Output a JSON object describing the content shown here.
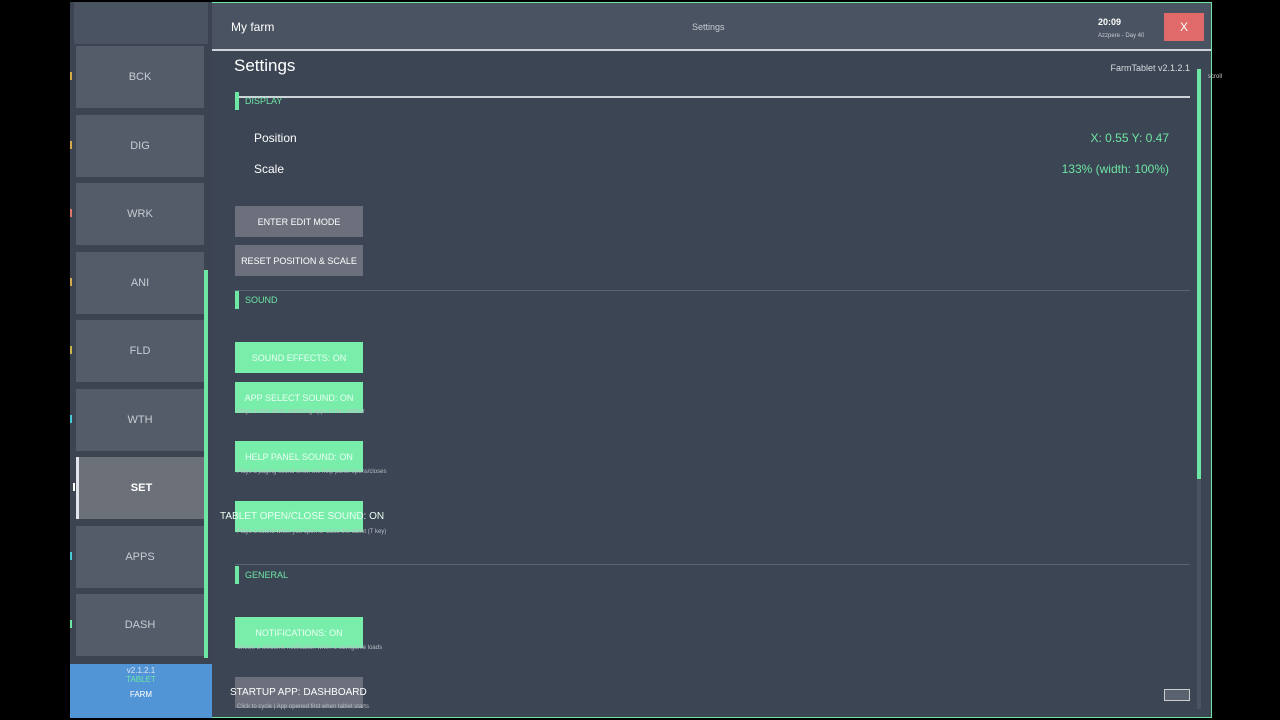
{
  "sidebar": {
    "items": [
      {
        "label": "BCK",
        "mark": "#d7a84a"
      },
      {
        "label": "DIG",
        "mark": "#d7a84a"
      },
      {
        "label": "WRK",
        "mark": "#e07a6a"
      },
      {
        "label": "ANI",
        "mark": "#d7a84a"
      },
      {
        "label": "FLD",
        "mark": "#c8b44a"
      },
      {
        "label": "WTH",
        "mark": "#4ac8d8"
      },
      {
        "label": "SET",
        "mark": "#ffffff"
      },
      {
        "label": "APPS",
        "mark": "#4ac8d8"
      },
      {
        "label": "DASH",
        "mark": "#6ee6a4"
      }
    ],
    "active": "SET",
    "footer": {
      "version": "v2.1.2.1",
      "line1": "TABLET",
      "line2": "FARM"
    }
  },
  "header": {
    "title": "My farm",
    "center": "Settings",
    "time": "20:09",
    "day": "Azzpere - Day 40",
    "close": "X"
  },
  "page": {
    "title": "Settings",
    "version": "FarmTablet v2.1.2.1",
    "scroll_label": "scroll",
    "scroll_fraction": 0.64
  },
  "display": {
    "heading": "DISPLAY",
    "position_label": "Position",
    "position_value": "X: 0.55  Y: 0.47",
    "scale_label": "Scale",
    "scale_value": "133%  (width: 100%)",
    "edit_btn": "ENTER EDIT MODE",
    "reset_btn": "RESET POSITION & SCALE"
  },
  "sound": {
    "heading": "SOUND",
    "effects": "SOUND EFFECTS: ON",
    "app_select": "APP SELECT SOUND: ON",
    "app_select_desc": "Plays a click when switching apps in the sidebar",
    "help": "HELP PANEL SOUND: ON",
    "help_desc": "Plays a paging sound when the help panel opens/closes",
    "tablet": "TABLET OPEN/CLOSE SOUND: ON",
    "tablet_desc": "Plays a sound when you open or close the tablet (T key)"
  },
  "general": {
    "heading": "GENERAL",
    "notifications": "NOTIFICATIONS: ON",
    "notifications_desc": "Shows a welcome notification when a savegame loads",
    "startup": "STARTUP APP: DASHBOARD",
    "startup_desc": "Click to cycle  |  App opened first when tablet starts"
  }
}
